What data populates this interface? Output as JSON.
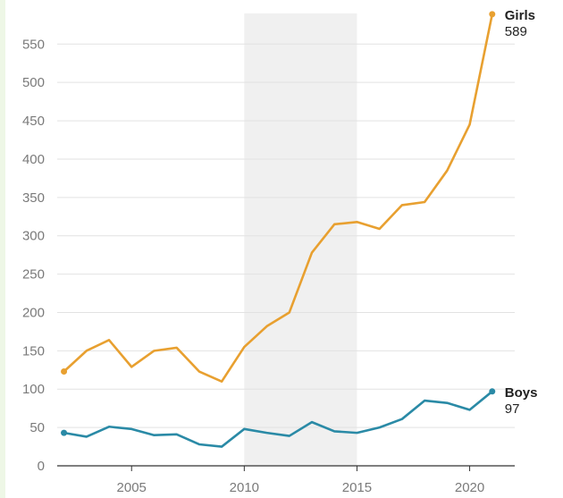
{
  "chart_data": {
    "type": "line",
    "title": "",
    "xlabel": "",
    "ylabel": "",
    "x": [
      2002,
      2003,
      2004,
      2005,
      2006,
      2007,
      2008,
      2009,
      2010,
      2011,
      2012,
      2013,
      2014,
      2015,
      2016,
      2017,
      2018,
      2019,
      2020,
      2021
    ],
    "series": [
      {
        "name": "Girls",
        "color": "#e8a030",
        "values": [
          123,
          150,
          164,
          129,
          150,
          154,
          123,
          110,
          155,
          182,
          200,
          278,
          315,
          318,
          309,
          340,
          344,
          385,
          445,
          589
        ],
        "end_label": "Girls",
        "end_value_label": "589"
      },
      {
        "name": "Boys",
        "color": "#2a8aa6",
        "values": [
          43,
          38,
          51,
          48,
          40,
          41,
          28,
          25,
          48,
          43,
          39,
          57,
          45,
          43,
          50,
          61,
          85,
          82,
          73,
          97
        ],
        "end_label": "Boys",
        "end_value_label": "97"
      }
    ],
    "yticks": [
      "0",
      "50",
      "100",
      "150",
      "200",
      "250",
      "300",
      "350",
      "400",
      "450",
      "500",
      "550"
    ],
    "xticks": [
      "2005",
      "2010",
      "2015",
      "2020"
    ],
    "ylim": [
      0,
      590
    ],
    "xlim": [
      2001.7,
      2022
    ],
    "shaded_x_range": [
      2010,
      2015
    ],
    "shade_color": "#f0f0f0",
    "grid": "horizontal",
    "legend": "none"
  }
}
